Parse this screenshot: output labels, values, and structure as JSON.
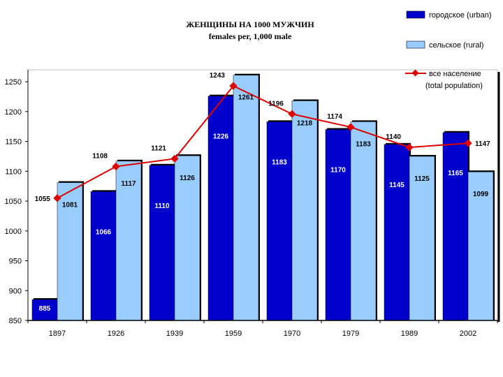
{
  "chart_data": {
    "type": "bar",
    "title": "ЖЕНЩИНЫ НА 1000 МУЖЧИН",
    "subtitle": "females per, 1,000 male",
    "categories": [
      "1897",
      "1926",
      "1939",
      "1959",
      "1970",
      "1979",
      "1989",
      "2002"
    ],
    "ylim": [
      850,
      1250
    ],
    "yticks": [
      850,
      900,
      950,
      1000,
      1050,
      1100,
      1150,
      1200,
      1250
    ],
    "grid": false,
    "legend_position": "top-right",
    "series": [
      {
        "name": "городское (urban)",
        "legend_label": "городское (urban)",
        "kind": "bar",
        "color": "#0000cc",
        "values": [
          885,
          1066,
          1110,
          1226,
          1183,
          1170,
          1145,
          1165
        ]
      },
      {
        "name": "сельское (rural)",
        "legend_label": "сельское (rural)",
        "kind": "bar",
        "color": "#99ccff",
        "values": [
          1081,
          1117,
          1126,
          1261,
          1218,
          1183,
          1125,
          1099
        ]
      },
      {
        "name": "все население (total population)",
        "legend_label_ru": "все население",
        "legend_label_en": "(total population)",
        "kind": "line",
        "color": "#dd0000",
        "values": [
          1055,
          1108,
          1121,
          1243,
          1196,
          1174,
          1140,
          1147
        ]
      }
    ]
  }
}
